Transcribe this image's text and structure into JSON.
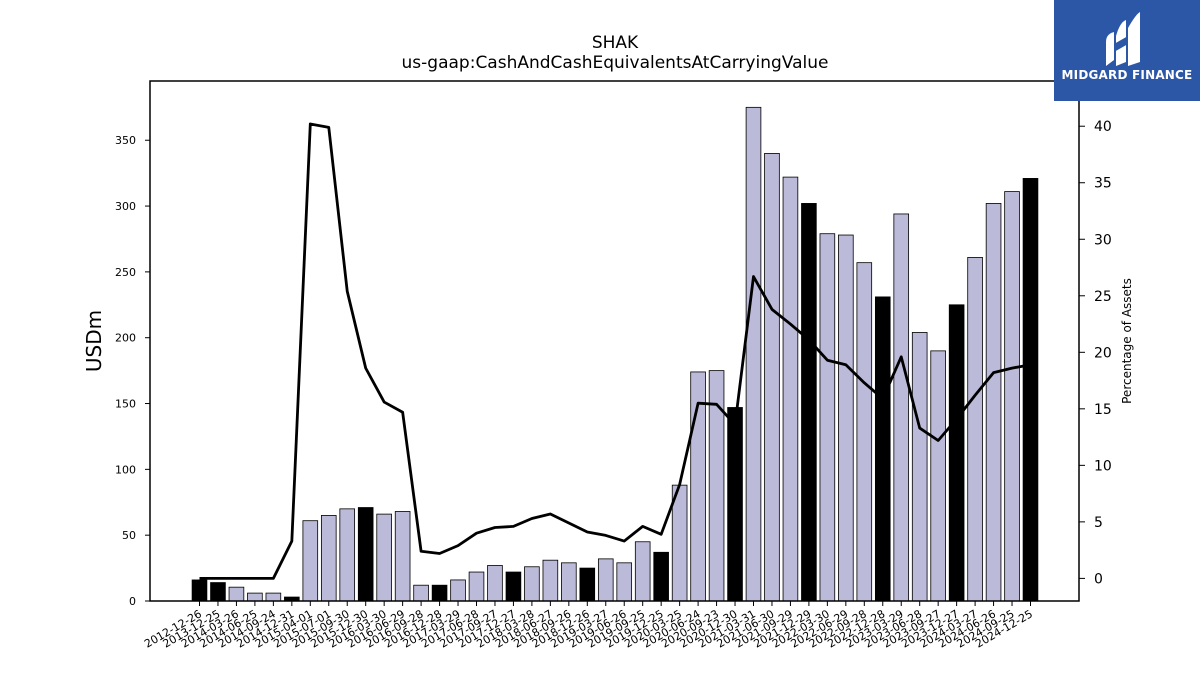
{
  "chart_data": {
    "type": "bar",
    "title": "SHAK",
    "subtitle": "us-gaap:CashAndCashEquivalentsAtCarryingValue",
    "ylabel": "USDm",
    "y2label": "Percentage of Assets",
    "ylim": [
      0,
      395
    ],
    "y2lim": [
      -2,
      44
    ],
    "y_ticks": [
      0,
      50,
      100,
      150,
      200,
      250,
      300,
      350
    ],
    "y2_ticks": [
      0,
      5,
      10,
      15,
      20,
      25,
      30,
      35,
      40
    ],
    "categories": [
      "2012-12-26",
      "2013-12-25",
      "2014-03-26",
      "2014-06-25",
      "2014-09-24",
      "2014-12-31",
      "2015-04-01",
      "2015-07-01",
      "2015-09-30",
      "2015-12-30",
      "2016-03-30",
      "2016-06-29",
      "2016-09-28",
      "2016-12-28",
      "2017-03-29",
      "2017-06-28",
      "2017-09-27",
      "2017-12-27",
      "2018-03-28",
      "2018-06-27",
      "2018-09-26",
      "2018-12-26",
      "2019-03-27",
      "2019-06-26",
      "2019-09-25",
      "2019-12-25",
      "2020-03-25",
      "2020-06-24",
      "2020-09-23",
      "2020-12-30",
      "2021-03-31",
      "2021-06-30",
      "2021-09-29",
      "2021-12-29",
      "2022-03-30",
      "2022-06-29",
      "2022-09-28",
      "2022-12-28",
      "2023-03-29",
      "2023-06-28",
      "2023-09-27",
      "2023-12-27",
      "2024-03-27",
      "2024-06-26",
      "2024-09-25",
      "2024-12-25"
    ],
    "series": [
      {
        "type": "bar",
        "axis": "left",
        "values": [
          16,
          14,
          10.5,
          6,
          6,
          3,
          61,
          65,
          70,
          71,
          66,
          68,
          12,
          12,
          16,
          22,
          27,
          22,
          26,
          31,
          29,
          25,
          32,
          29,
          45,
          37,
          88,
          174,
          175,
          147,
          375,
          340,
          322,
          302,
          279,
          278,
          257,
          231,
          294,
          204,
          190,
          225,
          261,
          302,
          311,
          321
        ]
      },
      {
        "type": "line",
        "axis": "right",
        "values": [
          0,
          0,
          0,
          0,
          0,
          3.3,
          40.2,
          39.9,
          25.4,
          18.6,
          15.6,
          14.7,
          2.4,
          2.2,
          2.9,
          4,
          4.5,
          4.6,
          5.3,
          5.7,
          4.9,
          4.1,
          3.8,
          3.3,
          4.6,
          3.9,
          8.3,
          15.5,
          15.4,
          13.6,
          26.7,
          23.8,
          22.5,
          21.1,
          19.3,
          18.9,
          17.3,
          15.9,
          19.6,
          13.3,
          12.2,
          14.1,
          16.2,
          18.2,
          18.6,
          18.9
        ]
      }
    ],
    "bar_fill": "#bcbad9",
    "highlight_fill": "#000000",
    "line_color": "#000000",
    "highlighted_indices": [
      0,
      1,
      5,
      9,
      13,
      17,
      21,
      25,
      29,
      33,
      37,
      41,
      45
    ]
  },
  "logo": {
    "text": "MIDGARD FINANCE",
    "bg": "#2b57a6"
  }
}
